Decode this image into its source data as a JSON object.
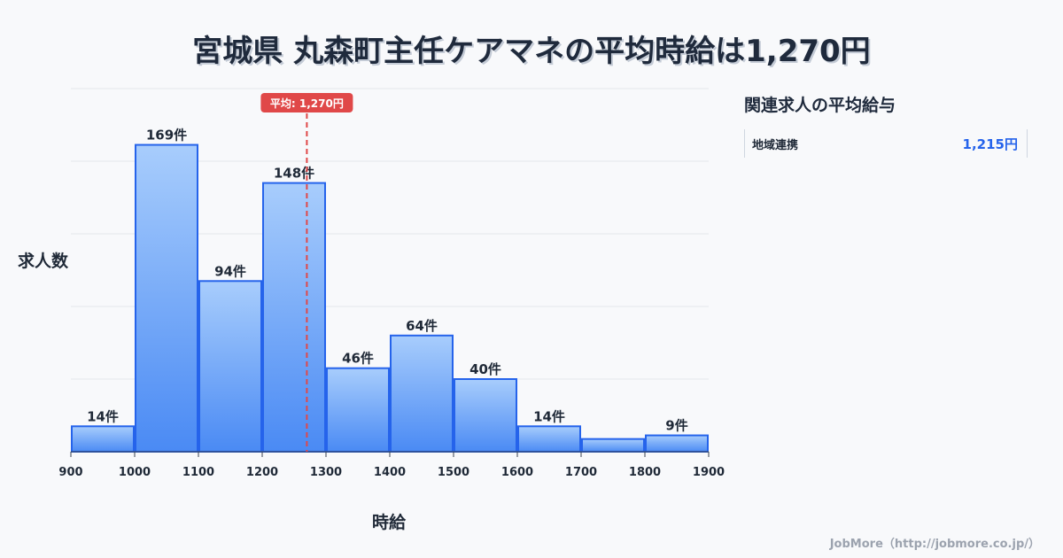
{
  "title": "宮城県 丸森町主任ケアマネの平均時給は1,270円",
  "chart_data": {
    "type": "bar",
    "title": "宮城県 丸森町主任ケアマネの平均時給は1,270円",
    "xlabel": "時給",
    "ylabel": "求人数",
    "bin_edges": [
      900,
      1000,
      1100,
      1200,
      1300,
      1400,
      1500,
      1600,
      1700,
      1800,
      1900
    ],
    "x_ticks": [
      "900",
      "1000",
      "1100",
      "1200",
      "1300",
      "1400",
      "1500",
      "1600",
      "1700",
      "1800",
      "1900"
    ],
    "values": [
      14,
      169,
      94,
      148,
      46,
      64,
      40,
      14,
      7,
      9
    ],
    "data_labels": [
      "14件",
      "169件",
      "94件",
      "148件",
      "46件",
      "64件",
      "40件",
      "14件",
      "",
      "9件"
    ],
    "xlim": [
      900,
      1900
    ],
    "ylim": [
      0,
      200
    ],
    "grid_step": 40,
    "grid": true,
    "mean": 1270,
    "mean_label": "平均: 1,270円",
    "colors": {
      "bar_top": "#a8cdfc",
      "bar_bottom": "#4a8af4",
      "bar_stroke": "#2563eb",
      "mean": "#e04848"
    }
  },
  "side": {
    "title": "関連求人の平均給与",
    "items": [
      {
        "name": "地域連携",
        "value": "1,215円"
      }
    ]
  },
  "footer": "JobMore（http://jobmore.co.jp/）"
}
